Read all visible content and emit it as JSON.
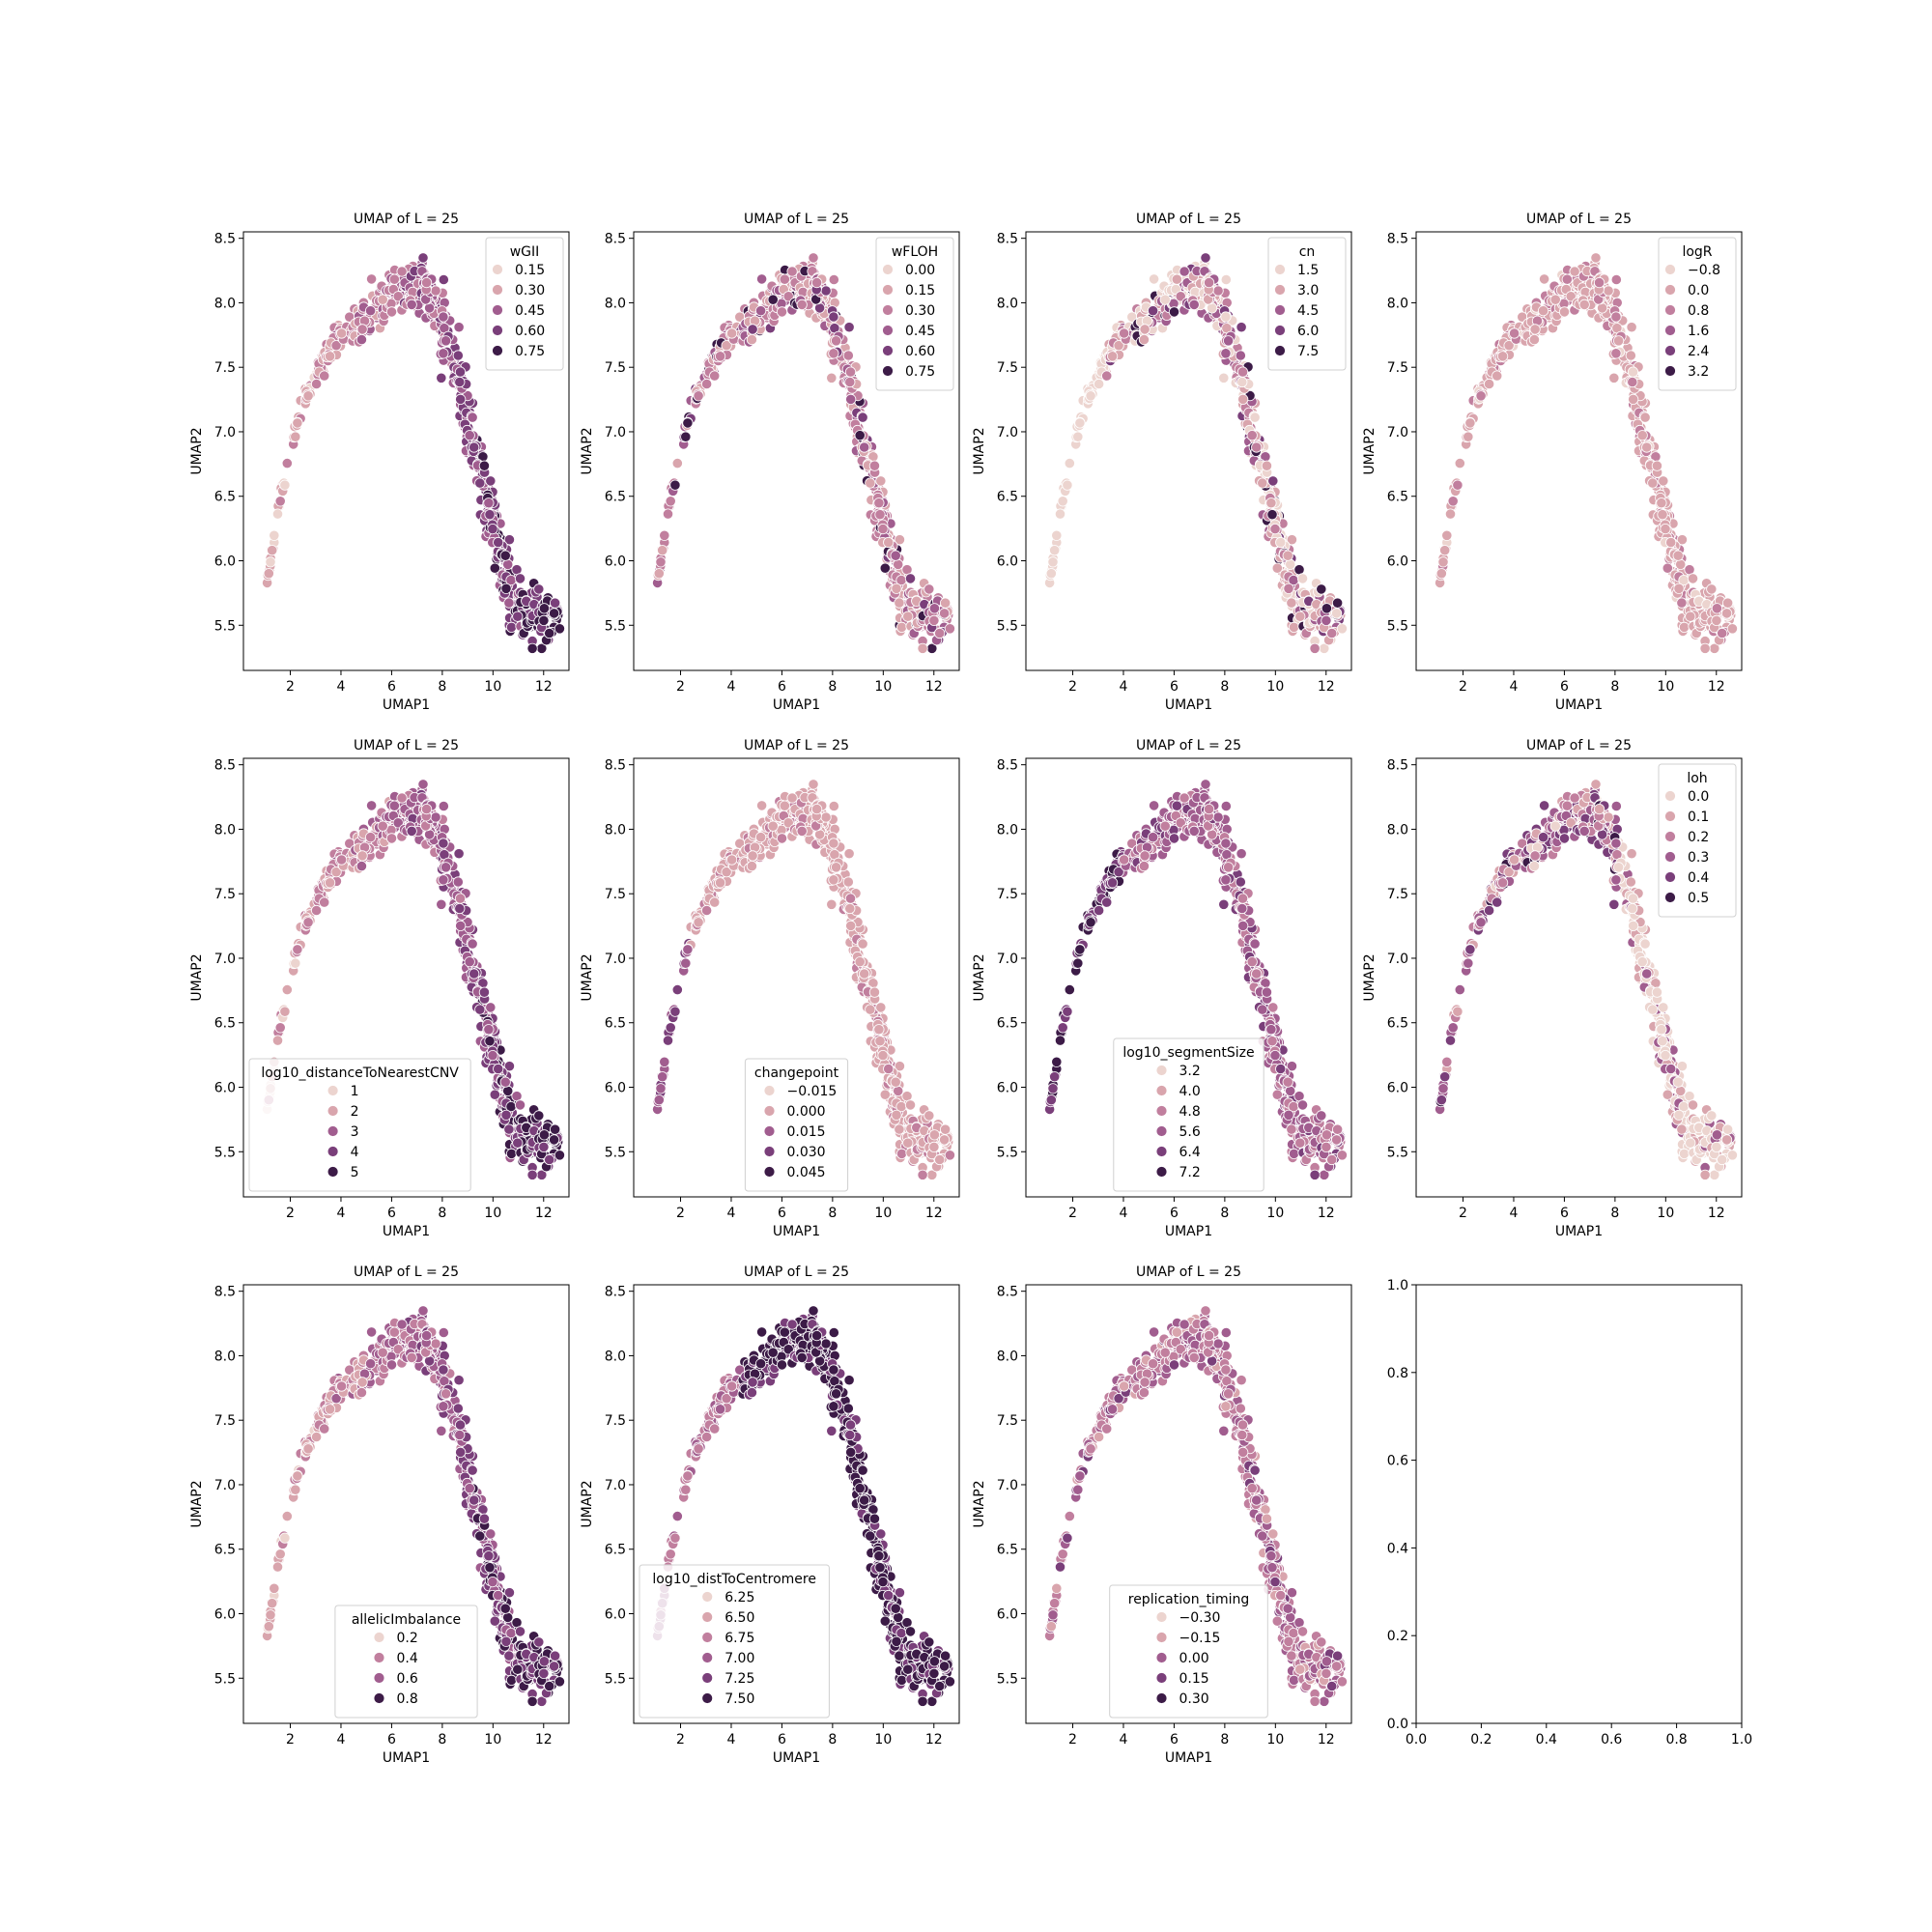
{
  "palette": {
    "light": "#ecd4cf",
    "mid1": "#d9a5ad",
    "mid2": "#c17f9e",
    "mid3": "#a15d8f",
    "mid4": "#7a3f7a",
    "dark": "#3c1b47",
    "edge": "#ffffff",
    "axis": "#000000",
    "legend_border": "#d0d0d0"
  },
  "chart_data": [
    {
      "type": "scatter",
      "title": "UMAP of L = 25",
      "xlabel": "UMAP1",
      "ylabel": "UMAP2",
      "xlim": [
        0.15,
        13.0
      ],
      "ylim": [
        5.15,
        8.55
      ],
      "xticks": [
        "2",
        "4",
        "6",
        "8",
        "10",
        "12"
      ],
      "yticks": [
        "5.5",
        "6.0",
        "6.5",
        "7.0",
        "7.5",
        "8.0",
        "8.5"
      ],
      "hue": "wGII",
      "legend_position": "upper right",
      "legend": {
        "title": "wGII",
        "entries": [
          "0.15",
          "0.30",
          "0.45",
          "0.60",
          "0.75"
        ]
      },
      "color_trend": "light-left-dark-right"
    },
    {
      "type": "scatter",
      "title": "UMAP of L = 25",
      "xlabel": "UMAP1",
      "ylabel": "UMAP2",
      "xlim": [
        0.15,
        13.0
      ],
      "ylim": [
        5.15,
        8.55
      ],
      "xticks": [
        "2",
        "4",
        "6",
        "8",
        "10",
        "12"
      ],
      "yticks": [
        "5.5",
        "6.0",
        "6.5",
        "7.0",
        "7.5",
        "8.0",
        "8.5"
      ],
      "hue": "wFLOH",
      "legend_position": "upper right",
      "legend": {
        "title": "wFLOH",
        "entries": [
          "0.00",
          "0.15",
          "0.30",
          "0.45",
          "0.60",
          "0.75"
        ]
      },
      "color_trend": "mostly-light-mixed"
    },
    {
      "type": "scatter",
      "title": "UMAP of L = 25",
      "xlabel": "UMAP1",
      "ylabel": "UMAP2",
      "xlim": [
        0.15,
        13.0
      ],
      "ylim": [
        5.15,
        8.55
      ],
      "xticks": [
        "2",
        "4",
        "6",
        "8",
        "10",
        "12"
      ],
      "yticks": [
        "5.5",
        "6.0",
        "6.5",
        "7.0",
        "7.5",
        "8.0",
        "8.5"
      ],
      "hue": "cn",
      "legend_position": "upper right",
      "legend": {
        "title": "cn",
        "entries": [
          "1.5",
          "3.0",
          "4.5",
          "6.0",
          "7.5"
        ]
      },
      "color_trend": "light-mixed"
    },
    {
      "type": "scatter",
      "title": "UMAP of L = 25",
      "xlabel": "UMAP1",
      "ylabel": "UMAP2",
      "xlim": [
        0.15,
        13.0
      ],
      "ylim": [
        5.15,
        8.55
      ],
      "xticks": [
        "2",
        "4",
        "6",
        "8",
        "10",
        "12"
      ],
      "yticks": [
        "5.5",
        "6.0",
        "6.5",
        "7.0",
        "7.5",
        "8.0",
        "8.5"
      ],
      "hue": "logR",
      "legend_position": "upper right",
      "legend": {
        "title": "logR",
        "entries": [
          "−0.8",
          "0.0",
          "0.8",
          "1.6",
          "2.4",
          "3.2"
        ]
      },
      "color_trend": "uniform-light"
    },
    {
      "type": "scatter",
      "title": "UMAP of L = 25",
      "xlabel": "UMAP1",
      "ylabel": "UMAP2",
      "xlim": [
        0.15,
        13.0
      ],
      "ylim": [
        5.15,
        8.55
      ],
      "xticks": [
        "2",
        "4",
        "6",
        "8",
        "10",
        "12"
      ],
      "yticks": [
        "5.5",
        "6.0",
        "6.5",
        "7.0",
        "7.5",
        "8.0",
        "8.5"
      ],
      "hue": "log10_distanceToNearestCNV",
      "legend_position": "lower left",
      "legend": {
        "title": "log10_distanceToNearestCNV",
        "entries": [
          "1",
          "2",
          "3",
          "4",
          "5"
        ]
      },
      "color_trend": "light-left-dark-right"
    },
    {
      "type": "scatter",
      "title": "UMAP of L = 25",
      "xlabel": "UMAP1",
      "ylabel": "UMAP2",
      "xlim": [
        0.15,
        13.0
      ],
      "ylim": [
        5.15,
        8.55
      ],
      "xticks": [
        "2",
        "4",
        "6",
        "8",
        "10",
        "12"
      ],
      "yticks": [
        "5.5",
        "6.0",
        "6.5",
        "7.0",
        "7.5",
        "8.0",
        "8.5"
      ],
      "hue": "changepoint",
      "legend_position": "lower center",
      "legend": {
        "title": "changepoint",
        "entries": [
          "−0.015",
          "0.000",
          "0.015",
          "0.030",
          "0.045"
        ]
      },
      "color_trend": "uniform-light-dark-tail"
    },
    {
      "type": "scatter",
      "title": "UMAP of L = 25",
      "xlabel": "UMAP1",
      "ylabel": "UMAP2",
      "xlim": [
        0.15,
        13.0
      ],
      "ylim": [
        5.15,
        8.55
      ],
      "xticks": [
        "2",
        "4",
        "6",
        "8",
        "10",
        "12"
      ],
      "yticks": [
        "5.5",
        "6.0",
        "6.5",
        "7.0",
        "7.5",
        "8.0",
        "8.5"
      ],
      "hue": "log10_segmentSize",
      "legend_position": "lower center",
      "legend": {
        "title": "log10_segmentSize",
        "entries": [
          "3.2",
          "4.0",
          "4.8",
          "5.6",
          "6.4",
          "7.2"
        ]
      },
      "color_trend": "dark-left-mid-right"
    },
    {
      "type": "scatter",
      "title": "UMAP of L = 25",
      "xlabel": "UMAP1",
      "ylabel": "UMAP2",
      "xlim": [
        0.15,
        13.0
      ],
      "ylim": [
        5.15,
        8.55
      ],
      "xticks": [
        "2",
        "4",
        "6",
        "8",
        "10",
        "12"
      ],
      "yticks": [
        "5.5",
        "6.0",
        "6.5",
        "7.0",
        "7.5",
        "8.0",
        "8.5"
      ],
      "hue": "loh",
      "legend_position": "upper right",
      "legend": {
        "title": "loh",
        "entries": [
          "0.0",
          "0.1",
          "0.2",
          "0.3",
          "0.4",
          "0.5"
        ]
      },
      "color_trend": "mixed-light-right"
    },
    {
      "type": "scatter",
      "title": "UMAP of L = 25",
      "xlabel": "UMAP1",
      "ylabel": "UMAP2",
      "xlim": [
        0.15,
        13.0
      ],
      "ylim": [
        5.15,
        8.55
      ],
      "xticks": [
        "2",
        "4",
        "6",
        "8",
        "10",
        "12"
      ],
      "yticks": [
        "5.5",
        "6.0",
        "6.5",
        "7.0",
        "7.5",
        "8.0",
        "8.5"
      ],
      "hue": "allelicImbalance",
      "legend_position": "lower center",
      "legend": {
        "title": "allelicImbalance",
        "entries": [
          "0.2",
          "0.4",
          "0.6",
          "0.8"
        ]
      },
      "color_trend": "light-left-dark-right"
    },
    {
      "type": "scatter",
      "title": "UMAP of L = 25",
      "xlabel": "UMAP1",
      "ylabel": "UMAP2",
      "xlim": [
        0.15,
        13.0
      ],
      "ylim": [
        5.15,
        8.55
      ],
      "xticks": [
        "2",
        "4",
        "6",
        "8",
        "10",
        "12"
      ],
      "yticks": [
        "5.5",
        "6.0",
        "6.5",
        "7.0",
        "7.5",
        "8.0",
        "8.5"
      ],
      "hue": "log10_distToCentromere",
      "legend_position": "lower left",
      "legend": {
        "title": "log10_distToCentromere",
        "entries": [
          "6.25",
          "6.50",
          "6.75",
          "7.00",
          "7.25",
          "7.50"
        ]
      },
      "color_trend": "mid-left-dark-right"
    },
    {
      "type": "scatter",
      "title": "UMAP of L = 25",
      "xlabel": "UMAP1",
      "ylabel": "UMAP2",
      "xlim": [
        0.15,
        13.0
      ],
      "ylim": [
        5.15,
        8.55
      ],
      "xticks": [
        "2",
        "4",
        "6",
        "8",
        "10",
        "12"
      ],
      "yticks": [
        "5.5",
        "6.0",
        "6.5",
        "7.0",
        "7.5",
        "8.0",
        "8.5"
      ],
      "hue": "replication_timing",
      "legend_position": "lower center",
      "legend": {
        "title": "replication_timing",
        "entries": [
          "−0.30",
          "−0.15",
          "0.00",
          "0.15",
          "0.30"
        ]
      },
      "color_trend": "uniform-mid"
    },
    {
      "type": "empty",
      "title": "",
      "xlabel": "",
      "ylabel": "",
      "xlim": [
        0.0,
        1.0
      ],
      "ylim": [
        0.0,
        1.0
      ],
      "xticks": [
        "0.0",
        "0.2",
        "0.4",
        "0.6",
        "0.8",
        "1.0"
      ],
      "yticks": [
        "0.0",
        "0.2",
        "0.4",
        "0.6",
        "0.8",
        "1.0"
      ]
    }
  ]
}
